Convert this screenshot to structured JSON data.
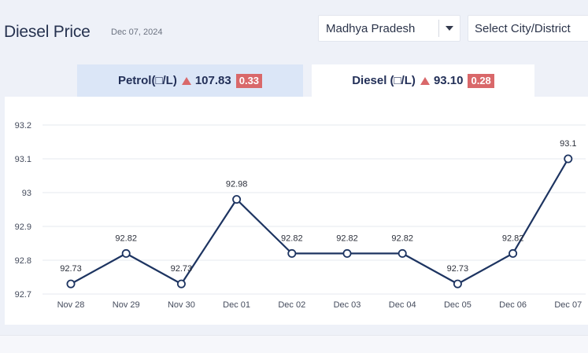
{
  "header": {
    "title": "Diesel Price",
    "date": "Dec 07, 2024",
    "state_select": "Madhya Pradesh",
    "city_select": "Select City/District"
  },
  "tabs": {
    "petrol": {
      "label": "Petrol(□/L)",
      "price": "107.83",
      "change": "0.33"
    },
    "diesel": {
      "label": "Diesel (□/L)",
      "price": "93.10",
      "change": "0.28"
    }
  },
  "colors": {
    "line": "#1d3461",
    "accent_up": "#d9686a",
    "grid": "#e6e9ef"
  },
  "chart_data": {
    "type": "line",
    "categories": [
      "Nov 28",
      "Nov 29",
      "Nov 30",
      "Dec 01",
      "Dec 02",
      "Dec 03",
      "Dec 04",
      "Dec 05",
      "Dec 06",
      "Dec 07"
    ],
    "values": [
      92.73,
      92.82,
      92.73,
      92.98,
      92.82,
      92.82,
      92.82,
      92.73,
      92.82,
      93.1
    ],
    "data_labels": [
      "92.73",
      "92.82",
      "92.73",
      "92.98",
      "92.82",
      "92.82",
      "92.82",
      "92.73",
      "92.82",
      "93.1"
    ],
    "y_ticks": [
      "92.7",
      "92.8",
      "92.9",
      "93",
      "93.1",
      "93.2"
    ],
    "ylim": [
      92.7,
      93.2
    ],
    "grid": true,
    "legend": "none"
  }
}
